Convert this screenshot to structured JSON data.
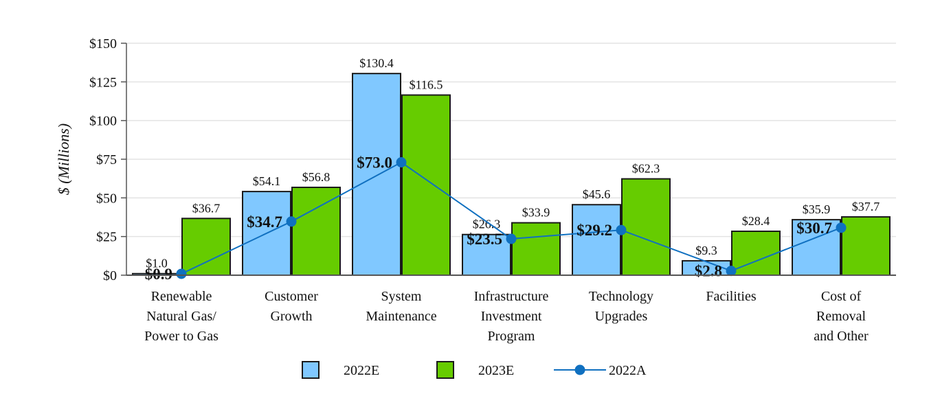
{
  "chart_data": {
    "type": "bar",
    "ylabel": "$ (Millions)",
    "ylim": [
      0,
      150
    ],
    "yticks": [
      0,
      25,
      50,
      75,
      100,
      125,
      150
    ],
    "ytick_labels": [
      "$0",
      "$25",
      "$50",
      "$75",
      "$100",
      "$125",
      "$150"
    ],
    "categories": [
      [
        "Renewable",
        "Natural Gas/",
        "Power to Gas"
      ],
      [
        "Customer",
        "Growth"
      ],
      [
        "System",
        "Maintenance"
      ],
      [
        "Infrastructure",
        "Investment",
        "Program"
      ],
      [
        "Technology",
        "Upgrades"
      ],
      [
        "Facilities"
      ],
      [
        "Cost of",
        "Removal",
        "and Other"
      ]
    ],
    "series": [
      {
        "name": "2022E",
        "kind": "bar",
        "color": "#80C8FF",
        "values": [
          1.0,
          54.1,
          130.4,
          26.3,
          45.6,
          9.3,
          35.9
        ],
        "labels": [
          "$1.0",
          "$54.1",
          "$130.4",
          "$26.3",
          "$45.6",
          "$9.3",
          "$35.9"
        ]
      },
      {
        "name": "2023E",
        "kind": "bar",
        "color": "#66CC00",
        "values": [
          36.7,
          56.8,
          116.5,
          33.9,
          62.3,
          28.4,
          37.7
        ],
        "labels": [
          "$36.7",
          "$56.8",
          "$116.5",
          "$33.9",
          "$62.3",
          "$28.4",
          "$37.7"
        ]
      },
      {
        "name": "2022A",
        "kind": "line",
        "color": "#1070C0",
        "values": [
          0.9,
          34.7,
          73.0,
          23.5,
          29.2,
          2.8,
          30.7
        ],
        "labels": [
          "$0.9",
          "$34.7",
          "$73.0",
          "$23.5",
          "$29.2",
          "$2.8",
          "$30.7"
        ]
      }
    ],
    "grid": true,
    "legend": "bottom-center"
  }
}
